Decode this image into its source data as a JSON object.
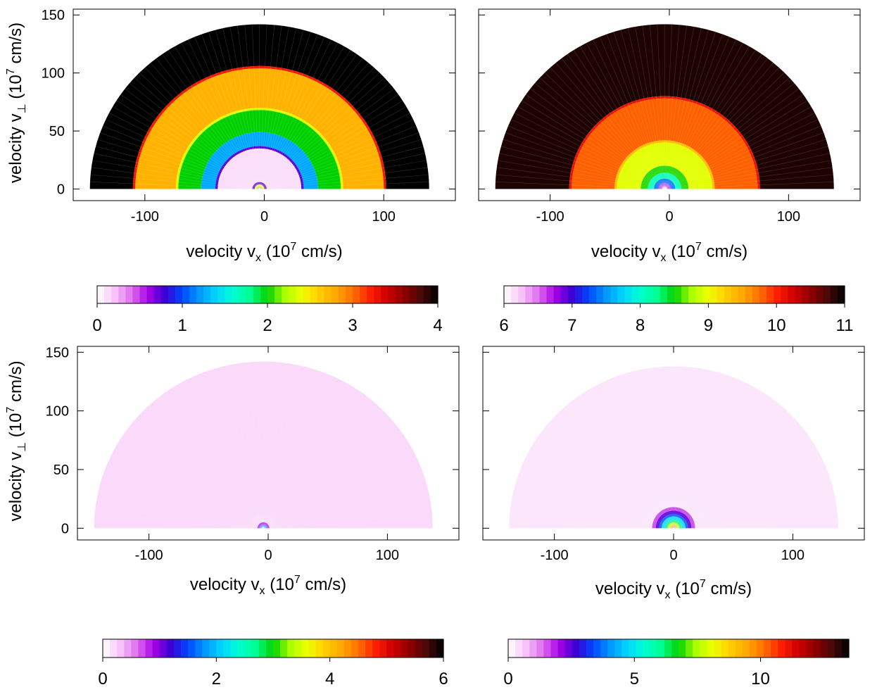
{
  "chart_data": [
    {
      "type": "heatmap",
      "panel": "top-left",
      "xlabel": "velocity v",
      "xlabel_sub": "x",
      "xlabel_tail": " (10",
      "xlabel_sup": "7",
      "xlabel_end": " cm/s)",
      "ylabel": "velocity v",
      "ylabel_sub": "⊥",
      "ylabel_tail": " (10",
      "ylabel_sup": "7",
      "ylabel_end": " cm/s)",
      "xticks": [
        -100,
        0,
        100
      ],
      "yticks": [
        0,
        50,
        100,
        150
      ],
      "xlim": [
        -160,
        160
      ],
      "ylim": [
        -10,
        155
      ],
      "rings": [
        {
          "r_inner": 106,
          "r_outer": 142,
          "value": 4.0
        },
        {
          "r_inner": 104,
          "r_outer": 106,
          "value": 3.25
        },
        {
          "r_inner": 70,
          "r_outer": 104,
          "value": 2.75
        },
        {
          "r_inner": 68,
          "r_outer": 70,
          "value": 2.35
        },
        {
          "r_inner": 49,
          "r_outer": 68,
          "value": 2.0
        },
        {
          "r_inner": 37,
          "r_outer": 49,
          "value": 1.25
        },
        {
          "r_inner": 35,
          "r_outer": 37,
          "value": 0.75
        },
        {
          "r_inner": 0,
          "r_outer": 35,
          "value": 0.12
        },
        {
          "r_inner": 4,
          "r_outer": 6,
          "value": 0.75
        },
        {
          "r_inner": 2,
          "r_outer": 4,
          "value": 2.5
        },
        {
          "r_inner": 0,
          "r_outer": 2,
          "value": 2.0
        }
      ],
      "center_x": -4,
      "colorbar": {
        "min": 0,
        "max": 4,
        "ticks": [
          0,
          1,
          2,
          3,
          4
        ]
      }
    },
    {
      "type": "heatmap",
      "panel": "top-right",
      "xlabel": "velocity v",
      "xlabel_sub": "x",
      "xlabel_tail": " (10",
      "xlabel_sup": "7",
      "xlabel_end": " cm/s)",
      "xticks": [
        -100,
        0,
        100
      ],
      "yticks": [
        0,
        50,
        100,
        150
      ],
      "xlim": [
        -160,
        160
      ],
      "ylim": [
        -10,
        155
      ],
      "rings": [
        {
          "r_inner": 80,
          "r_outer": 142,
          "value": 10.9
        },
        {
          "r_inner": 78,
          "r_outer": 80,
          "value": 10.1
        },
        {
          "r_inner": 42,
          "r_outer": 78,
          "value": 9.8
        },
        {
          "r_inner": 40,
          "r_outer": 42,
          "value": 9.35
        },
        {
          "r_inner": 20,
          "r_outer": 40,
          "value": 8.95
        },
        {
          "r_inner": 14,
          "r_outer": 20,
          "value": 8.55
        },
        {
          "r_inner": 9,
          "r_outer": 14,
          "value": 8.1
        },
        {
          "r_inner": 5,
          "r_outer": 9,
          "value": 7.35
        },
        {
          "r_inner": 2,
          "r_outer": 5,
          "value": 6.65
        },
        {
          "r_inner": 0,
          "r_outer": 2,
          "value": 6.2
        }
      ],
      "center_x": -4,
      "colorbar": {
        "min": 6,
        "max": 11,
        "ticks": [
          6,
          7,
          8,
          9,
          10,
          11
        ]
      }
    },
    {
      "type": "heatmap",
      "panel": "bottom-left",
      "xlabel": "velocity v",
      "xlabel_sub": "x",
      "xlabel_tail": " (10",
      "xlabel_sup": "7",
      "xlabel_end": " cm/s)",
      "ylabel": "velocity v",
      "ylabel_sub": "⊥",
      "ylabel_tail": " (10",
      "ylabel_sup": "7",
      "ylabel_end": " cm/s)",
      "xticks": [
        -100,
        0,
        100
      ],
      "yticks": [
        0,
        50,
        100,
        150
      ],
      "xlim": [
        -160,
        160
      ],
      "ylim": [
        -10,
        155
      ],
      "rings": [
        {
          "r_inner": 5,
          "r_outer": 142,
          "value": 0.2
        },
        {
          "r_inner": 3,
          "r_outer": 5,
          "value": 0.9
        },
        {
          "r_inner": 0,
          "r_outer": 3,
          "value": 1.6
        }
      ],
      "center_x": -4,
      "colorbar": {
        "min": 0,
        "max": 6,
        "ticks": [
          0,
          2,
          4,
          6
        ]
      }
    },
    {
      "type": "heatmap",
      "panel": "bottom-right",
      "xlabel": "velocity v",
      "xlabel_sub": "x",
      "xlabel_tail": " (10",
      "xlabel_sup": "7",
      "xlabel_end": " cm/s)",
      "xticks": [
        -100,
        0,
        100
      ],
      "yticks": [
        0,
        50,
        100,
        150
      ],
      "xlim": [
        -160,
        160
      ],
      "ylim": [
        -10,
        155
      ],
      "rings": [
        {
          "r_inner": 18,
          "r_outer": 138,
          "value": 0.3
        },
        {
          "r_inner": 15,
          "r_outer": 18,
          "value": 1.6
        },
        {
          "r_inner": 12,
          "r_outer": 15,
          "value": 2.5
        },
        {
          "r_inner": 10,
          "r_outer": 12,
          "value": 3.5
        },
        {
          "r_inner": 7,
          "r_outer": 10,
          "value": 4.8
        },
        {
          "r_inner": 5,
          "r_outer": 7,
          "value": 6.2
        },
        {
          "r_inner": 3,
          "r_outer": 5,
          "value": 7.6
        },
        {
          "r_inner": 1.5,
          "r_outer": 3,
          "value": 9.5
        },
        {
          "r_inner": 0,
          "r_outer": 1.5,
          "value": 12.5
        }
      ],
      "center_x": 0,
      "colorbar": {
        "min": 0,
        "max": 13.5,
        "ticks": [
          0,
          5,
          10
        ]
      }
    }
  ],
  "palette": [
    "#ffffff",
    "#f7c6f7",
    "#e070f0",
    "#a800e6",
    "#3a00d6",
    "#0048ff",
    "#0098ff",
    "#00d6ff",
    "#00ffd0",
    "#00ff90",
    "#00d000",
    "#a8ff00",
    "#f0ff00",
    "#ffd000",
    "#ffa800",
    "#ff7000",
    "#ff2000",
    "#d00000",
    "#900000",
    "#4a0808",
    "#000000"
  ]
}
